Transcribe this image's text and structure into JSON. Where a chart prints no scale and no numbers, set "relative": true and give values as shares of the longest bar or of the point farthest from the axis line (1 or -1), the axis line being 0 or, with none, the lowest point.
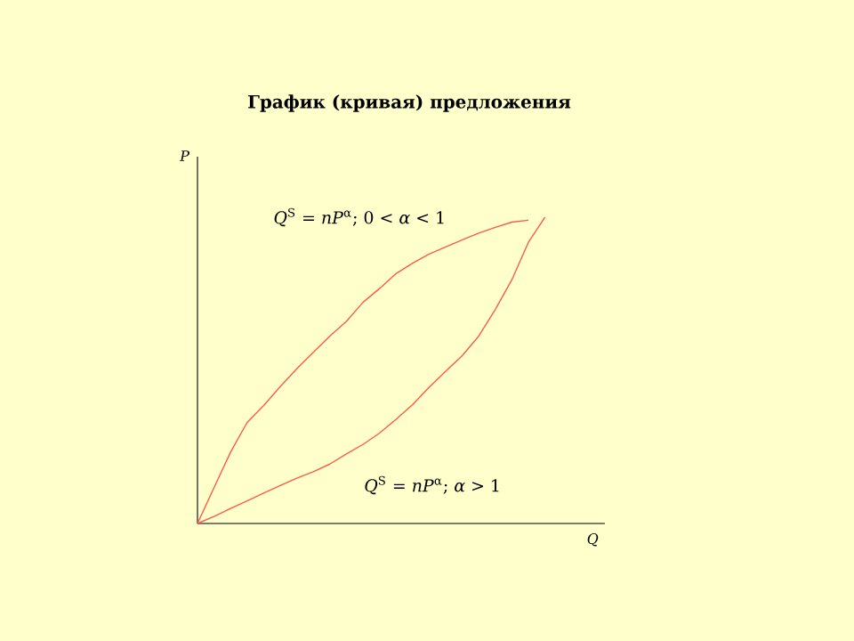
{
  "chart_data": {
    "type": "line",
    "title": "График (кривая) предложения",
    "xlabel": "Q",
    "ylabel": "P",
    "relative": true,
    "line_style": "solid",
    "annotations": [
      "*Q*$^{S}$ = *nP*$^{α}$;  0 < *α* < 1",
      "*Q*$^{S}$ = *nP*$^{α}$; *α* > 1"
    ],
    "categories": [
      null,
      null,
      null,
      null,
      null,
      null,
      null,
      null,
      null,
      null,
      null,
      null,
      null,
      null,
      null,
      null,
      null,
      null,
      null,
      null,
      null,
      null
    ],
    "series": [
      {
        "color": "#ff5a4a",
        "values": [
          0,
          0.117,
          0.233,
          0.33,
          0.385,
          0.447,
          0.505,
          0.559,
          0.612,
          0.66,
          0.722,
          0.767,
          0.816,
          0.85,
          0.88,
          0.903,
          0.926,
          0.948,
          0.967,
          0.984,
          0.99,
          null
        ]
      },
      {
        "color": "#ff5a4a",
        "values": [
          0,
          0.023,
          0.049,
          0.074,
          0.099,
          0.124,
          0.148,
          0.169,
          0.194,
          0.227,
          0.258,
          0.295,
          0.34,
          0.388,
          0.445,
          0.497,
          0.548,
          0.612,
          0.699,
          0.796,
          0.918,
          1
        ]
      }
    ]
  }
}
